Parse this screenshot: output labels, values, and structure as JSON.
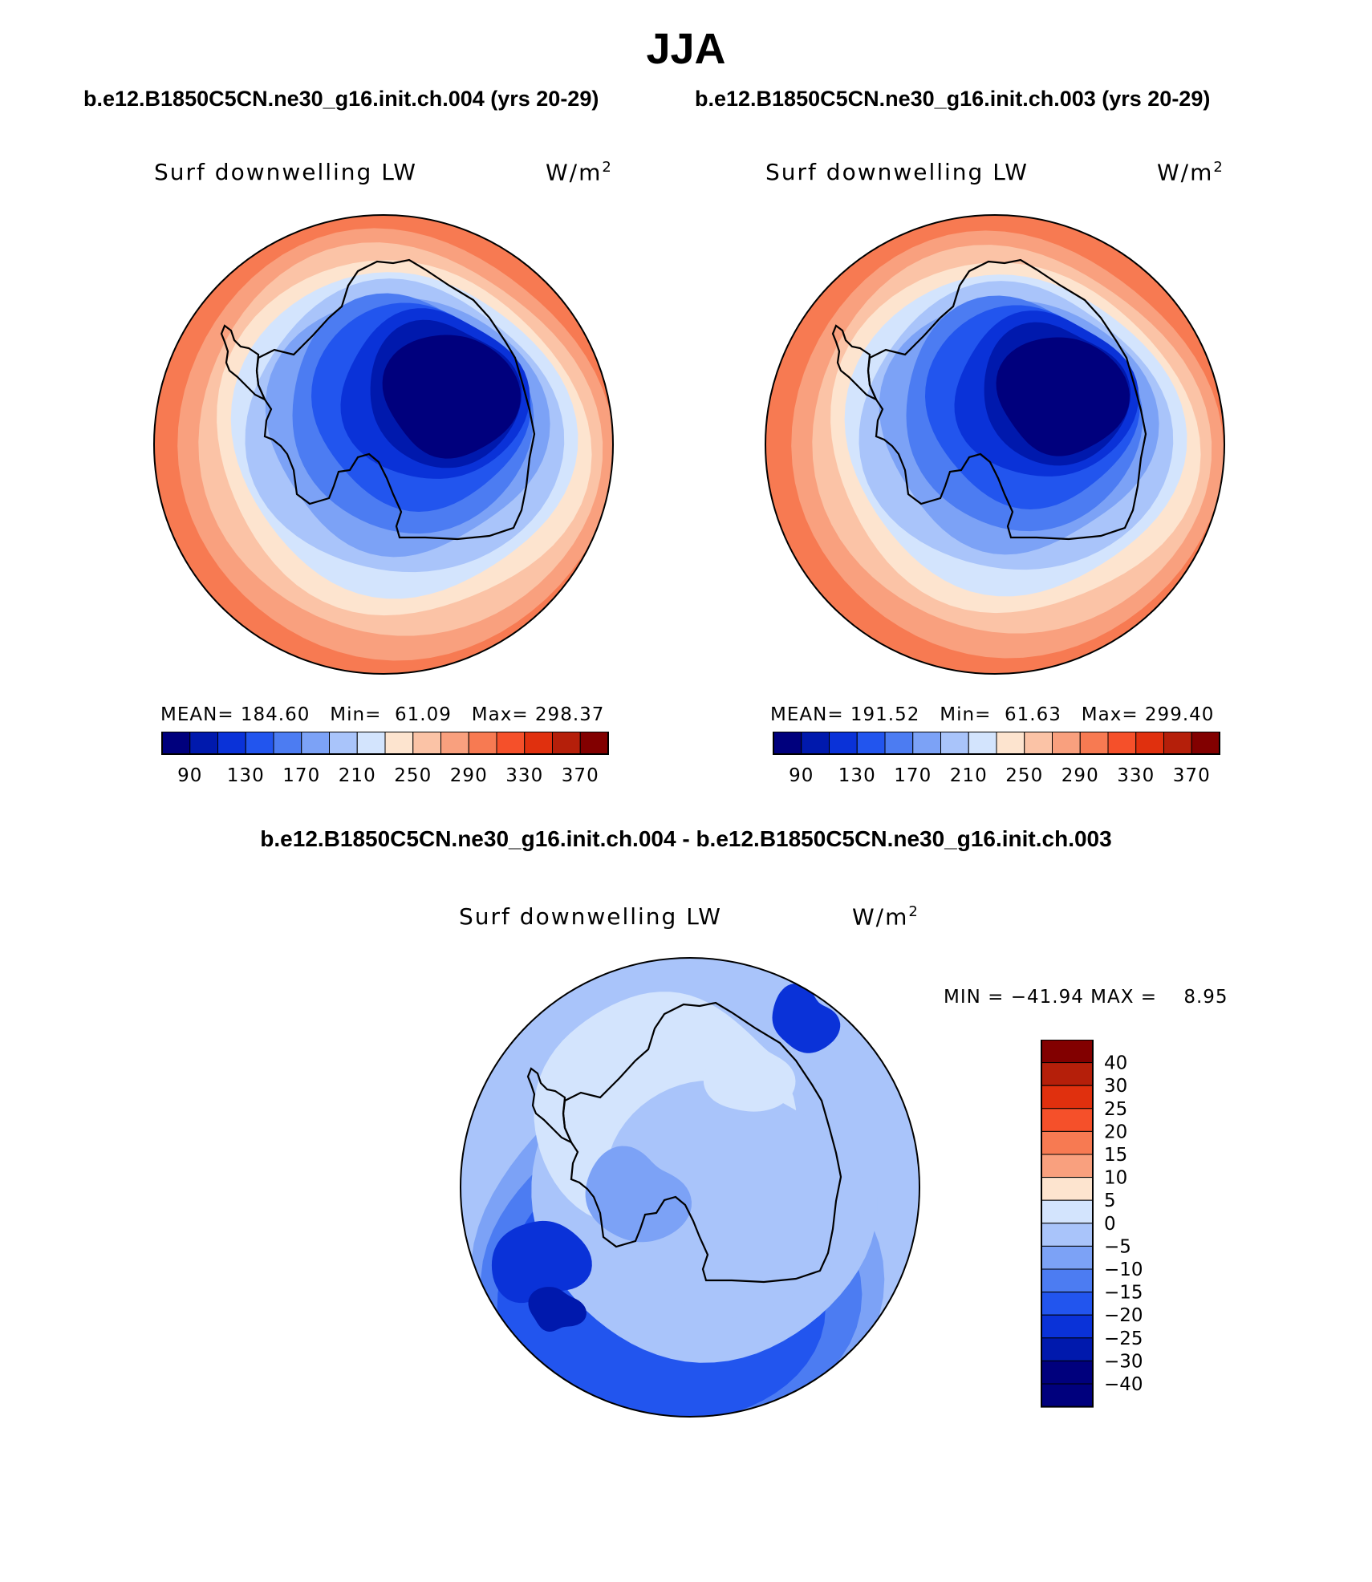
{
  "title": "JJA",
  "left_case_title": "b.e12.B1850C5CN.ne30_g16.init.ch.004 (yrs 20-29)",
  "right_case_title": "b.e12.B1850C5CN.ne30_g16.init.ch.003 (yrs 20-29)",
  "diff_title": "b.e12.B1850C5CN.ne30_g16.init.ch.004 - b.e12.B1850C5CN.ne30_g16.init.ch.003",
  "variable_label": "Surf downwelling LW",
  "units": {
    "base": "W/m",
    "exp": "2"
  },
  "chart_data": [
    {
      "type": "heatmap",
      "projection": "south-polar-stereographic",
      "title": "b.e12.B1850C5CN.ne30_g16.init.ch.004 (yrs 20-29)",
      "variable": "Surf downwelling LW",
      "units": "W/m2",
      "stats": {
        "mean": "184.60",
        "min": "61.09",
        "max": "298.37",
        "text": "MEAN= 184.60   Min=  61.09   Max= 298.37"
      },
      "contour_levels": [
        90,
        110,
        130,
        150,
        170,
        190,
        210,
        230,
        250,
        270,
        290,
        310,
        330,
        350,
        370
      ],
      "colorbar_tick_labels": [
        "90",
        "130",
        "170",
        "210",
        "250",
        "290",
        "330",
        "370"
      ],
      "colorbar_colors": [
        "#00007d",
        "#0019ad",
        "#0a32d8",
        "#2255ee",
        "#4c7cf2",
        "#7ca2f6",
        "#a9c4fa",
        "#d3e4fd",
        "#fde4cf",
        "#fbc3a6",
        "#f9a07e",
        "#f77a52",
        "#f5502a",
        "#e0300e",
        "#b51f0a",
        "#820000"
      ]
    },
    {
      "type": "heatmap",
      "projection": "south-polar-stereographic",
      "title": "b.e12.B1850C5CN.ne30_g16.init.ch.003 (yrs 20-29)",
      "variable": "Surf downwelling LW",
      "units": "W/m2",
      "stats": {
        "mean": "191.52",
        "min": "61.63",
        "max": "299.40",
        "text": "MEAN= 191.52   Min=  61.63   Max= 299.40"
      },
      "contour_levels": [
        90,
        110,
        130,
        150,
        170,
        190,
        210,
        230,
        250,
        270,
        290,
        310,
        330,
        350,
        370
      ],
      "colorbar_tick_labels": [
        "90",
        "130",
        "170",
        "210",
        "250",
        "290",
        "330",
        "370"
      ],
      "colorbar_colors": [
        "#00007d",
        "#0019ad",
        "#0a32d8",
        "#2255ee",
        "#4c7cf2",
        "#7ca2f6",
        "#a9c4fa",
        "#d3e4fd",
        "#fde4cf",
        "#fbc3a6",
        "#f9a07e",
        "#f77a52",
        "#f5502a",
        "#e0300e",
        "#b51f0a",
        "#820000"
      ]
    },
    {
      "type": "heatmap",
      "projection": "south-polar-stereographic",
      "title": "b.e12.B1850C5CN.ne30_g16.init.ch.004 - b.e12.B1850C5CN.ne30_g16.init.ch.003",
      "variable": "Surf downwelling LW",
      "units": "W/m2",
      "stats": {
        "min": "-41.94",
        "max": "8.95",
        "text": "MIN = −41.94 MAX =    8.95"
      },
      "contour_levels": [
        -40,
        -30,
        -25,
        -20,
        -15,
        -10,
        -5,
        0,
        5,
        10,
        15,
        20,
        25,
        30,
        40
      ],
      "colorbar_tick_labels": [
        "40",
        "30",
        "25",
        "20",
        "15",
        "10",
        "5",
        "0",
        "−5",
        "−10",
        "−15",
        "−20",
        "−25",
        "−30",
        "−40"
      ],
      "colorbar_colors": [
        "#820000",
        "#b51f0a",
        "#e0300e",
        "#f5502a",
        "#f77a52",
        "#f9a07e",
        "#fde4cf",
        "#d3e4fd",
        "#a9c4fa",
        "#7ca2f6",
        "#4c7cf2",
        "#2255ee",
        "#0a32d8",
        "#0019ad",
        "#00007d",
        "#00007d"
      ]
    }
  ]
}
